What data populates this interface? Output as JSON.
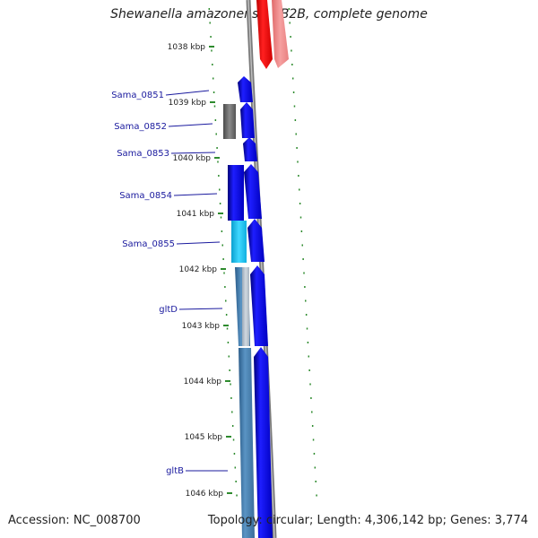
{
  "title": "Shewanella amazonensis SB2B, complete genome",
  "accession_text": "Accession: NC_008700",
  "topology_text": "Topology: circular; Length: 4,306,142 bp; Genes: 3,774",
  "colors": {
    "backbone": "#808080",
    "forward_cds": "#0000ff",
    "reverse_cds": "#4682b4",
    "rna_red": "#ff0000",
    "rna_pink": "#f08080",
    "gray_feature": "#6e6e6e",
    "cyan_feature": "#1ec8f0",
    "tick": "#2e8b2e",
    "label_line": "#1a1a9e"
  },
  "ticks": [
    {
      "label": "1038 kbp"
    },
    {
      "label": "1039 kbp"
    },
    {
      "label": "1040 kbp"
    },
    {
      "label": "1041 kbp"
    },
    {
      "label": "1042 kbp"
    },
    {
      "label": "1043 kbp"
    },
    {
      "label": "1044 kbp"
    },
    {
      "label": "1045 kbp"
    },
    {
      "label": "1046 kbp"
    }
  ],
  "gene_labels": [
    {
      "name": "Sama_0851"
    },
    {
      "name": "Sama_0852"
    },
    {
      "name": "Sama_0853"
    },
    {
      "name": "Sama_0854"
    },
    {
      "name": "Sama_0855"
    },
    {
      "name": "gltD"
    },
    {
      "name": "gltB"
    }
  ]
}
